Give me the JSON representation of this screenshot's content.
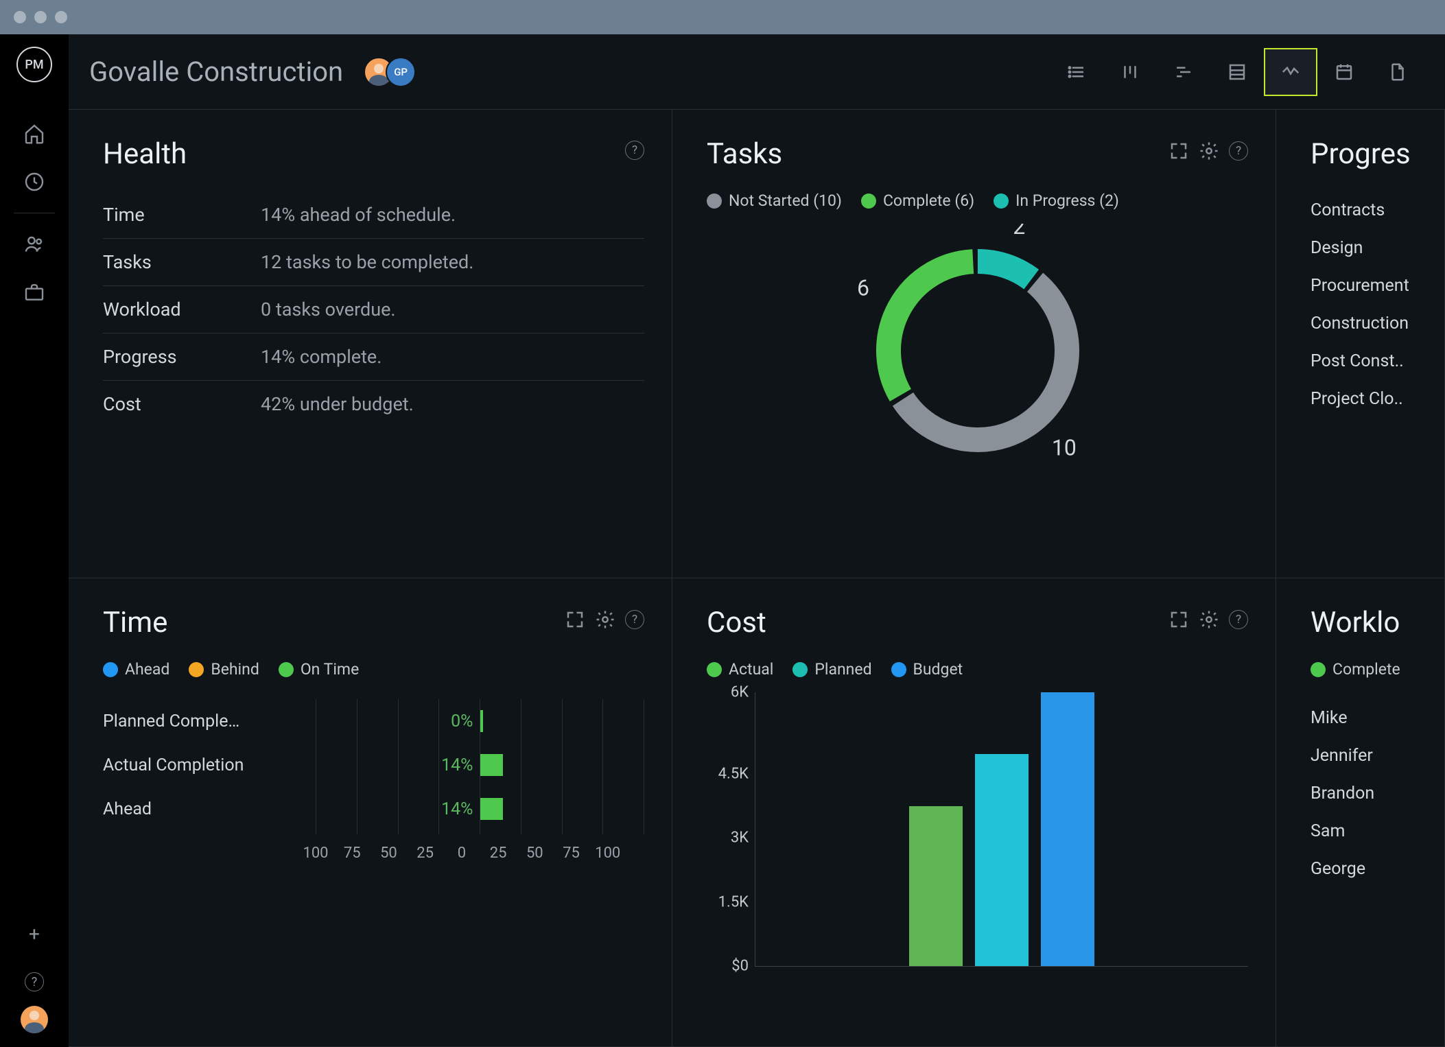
{
  "titlebar": {
    "dot_color": "#a8b3bd",
    "bg": "#6d8091"
  },
  "sidebar": {
    "logo_text": "PM",
    "plus": "+",
    "help": "?"
  },
  "header": {
    "title": "Govalle Construction",
    "initials": "GP",
    "initials_bg": "#3a7cc4",
    "active_tab_index": 4,
    "tab_border_color": "#c5e82e"
  },
  "health": {
    "title": "Health",
    "rows": [
      {
        "label": "Time",
        "value": "14% ahead of schedule."
      },
      {
        "label": "Tasks",
        "value": "12 tasks to be completed."
      },
      {
        "label": "Workload",
        "value": "0 tasks overdue."
      },
      {
        "label": "Progress",
        "value": "14% complete."
      },
      {
        "label": "Cost",
        "value": "42% under budget."
      }
    ]
  },
  "tasks": {
    "title": "Tasks",
    "legend": [
      {
        "label": "Not Started (10)",
        "color": "#8a9199"
      },
      {
        "label": "Complete (6)",
        "color": "#4ec94e"
      },
      {
        "label": "In Progress (2)",
        "color": "#1dbfb0"
      }
    ],
    "donut": {
      "total": 18,
      "segments": [
        {
          "value": 2,
          "color": "#1dbfb0",
          "label": "2"
        },
        {
          "value": 10,
          "color": "#8a9199",
          "label": "10"
        },
        {
          "value": 6,
          "color": "#4ec94e",
          "label": "6"
        }
      ],
      "stroke_width": 36,
      "radius": 130
    }
  },
  "progress": {
    "title": "Progres",
    "items": [
      "Contracts",
      "Design",
      "Procurement",
      "Construction",
      "Post Const..",
      "Project Clo.."
    ]
  },
  "time": {
    "title": "Time",
    "legend": [
      {
        "label": "Ahead",
        "color": "#2196f3"
      },
      {
        "label": "Behind",
        "color": "#f5a623"
      },
      {
        "label": "On Time",
        "color": "#4ec94e"
      }
    ],
    "rows": [
      {
        "label": "Planned Comple…",
        "pct": "0%",
        "value": 0,
        "color": "#4ec94e"
      },
      {
        "label": "Actual Completion",
        "pct": "14%",
        "value": 14,
        "color": "#4ec94e"
      },
      {
        "label": "Ahead",
        "pct": "14%",
        "value": 14,
        "color": "#4ec94e"
      }
    ],
    "axis": [
      "100",
      "75",
      "50",
      "25",
      "0",
      "25",
      "50",
      "75",
      "100"
    ],
    "grid_count": 8,
    "pct_color": "#5cb860"
  },
  "cost": {
    "title": "Cost",
    "legend": [
      {
        "label": "Actual",
        "color": "#4ec94e"
      },
      {
        "label": "Planned",
        "color": "#1dbfb0"
      },
      {
        "label": "Budget",
        "color": "#2196f3"
      }
    ],
    "ymax": 6000,
    "yticks": [
      "6K",
      "4.5K",
      "3K",
      "1.5K",
      "$0"
    ],
    "bars": [
      {
        "value": 3500,
        "color": "#5fb554"
      },
      {
        "value": 4650,
        "color": "#22c3d6"
      },
      {
        "value": 6000,
        "color": "#2a96ea"
      }
    ]
  },
  "worklo": {
    "title": "Worklo",
    "legend": [
      {
        "label": "Complete",
        "color": "#4ec94e"
      }
    ],
    "items": [
      "Mike",
      "Jennifer",
      "Brandon",
      "Sam",
      "George"
    ]
  }
}
